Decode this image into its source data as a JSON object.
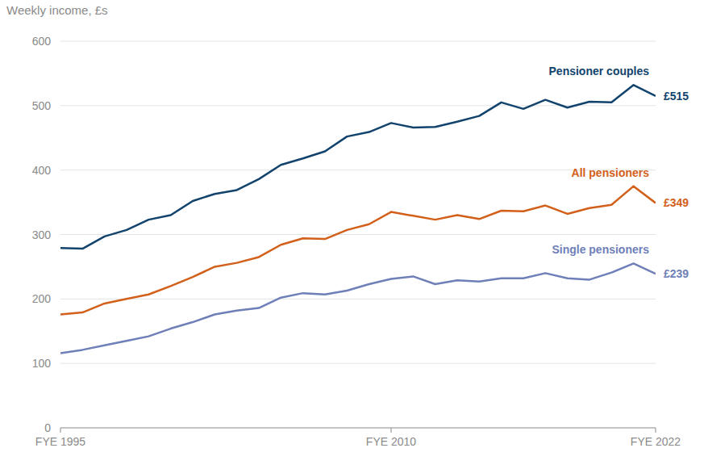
{
  "chart_data": {
    "type": "line",
    "y_label": "Weekly income, £s",
    "x": [
      1995,
      1996,
      1997,
      1998,
      1999,
      2000,
      2001,
      2002,
      2003,
      2004,
      2005,
      2006,
      2007,
      2008,
      2009,
      2010,
      2011,
      2012,
      2013,
      2014,
      2015,
      2016,
      2017,
      2018,
      2019,
      2020,
      2021,
      2022
    ],
    "xlim": [
      1995,
      2022
    ],
    "xticks": [
      {
        "value": 1995,
        "label": "FYE 1995"
      },
      {
        "value": 2010,
        "label": "FYE 2010"
      },
      {
        "value": 2022,
        "label": "FYE 2022"
      }
    ],
    "ylim": [
      0,
      600
    ],
    "yticks": [
      0,
      100,
      200,
      300,
      400,
      500,
      600
    ],
    "grid": true,
    "series": [
      {
        "name": "Pensioner couples",
        "color": "#12436d",
        "values": [
          279,
          278,
          297,
          307,
          323,
          330,
          352,
          363,
          369,
          386,
          408,
          418,
          429,
          452,
          459,
          473,
          466,
          467,
          475,
          484,
          505,
          495,
          509,
          497,
          506,
          505,
          532,
          515
        ],
        "value_labels": [
          null,
          null,
          null,
          null,
          null,
          null,
          null,
          null,
          null,
          null,
          null,
          null,
          null,
          null,
          null,
          null,
          null,
          null,
          null,
          null,
          null,
          null,
          null,
          null,
          null,
          null,
          null,
          "£515"
        ]
      },
      {
        "name": "All pensioners",
        "color": "#d2601a",
        "values": [
          176,
          179,
          193,
          200,
          207,
          220,
          234,
          250,
          256,
          265,
          284,
          294,
          293,
          307,
          316,
          335,
          329,
          323,
          330,
          324,
          337,
          336,
          345,
          332,
          341,
          346,
          375,
          349
        ],
        "value_labels": [
          null,
          null,
          null,
          null,
          null,
          null,
          null,
          null,
          null,
          null,
          null,
          null,
          null,
          null,
          null,
          null,
          null,
          null,
          null,
          null,
          null,
          null,
          null,
          null,
          null,
          null,
          null,
          "£349"
        ]
      },
      {
        "name": "Single pensioners",
        "color": "#6f7fb8",
        "values": [
          116,
          121,
          128,
          135,
          142,
          154,
          164,
          176,
          182,
          186,
          202,
          209,
          207,
          213,
          223,
          231,
          235,
          223,
          229,
          227,
          232,
          232,
          240,
          232,
          230,
          241,
          255,
          239
        ],
        "value_labels": [
          null,
          null,
          null,
          null,
          null,
          null,
          null,
          null,
          null,
          null,
          null,
          null,
          null,
          null,
          null,
          null,
          null,
          null,
          null,
          null,
          null,
          null,
          null,
          null,
          null,
          null,
          null,
          "£239"
        ]
      }
    ]
  }
}
